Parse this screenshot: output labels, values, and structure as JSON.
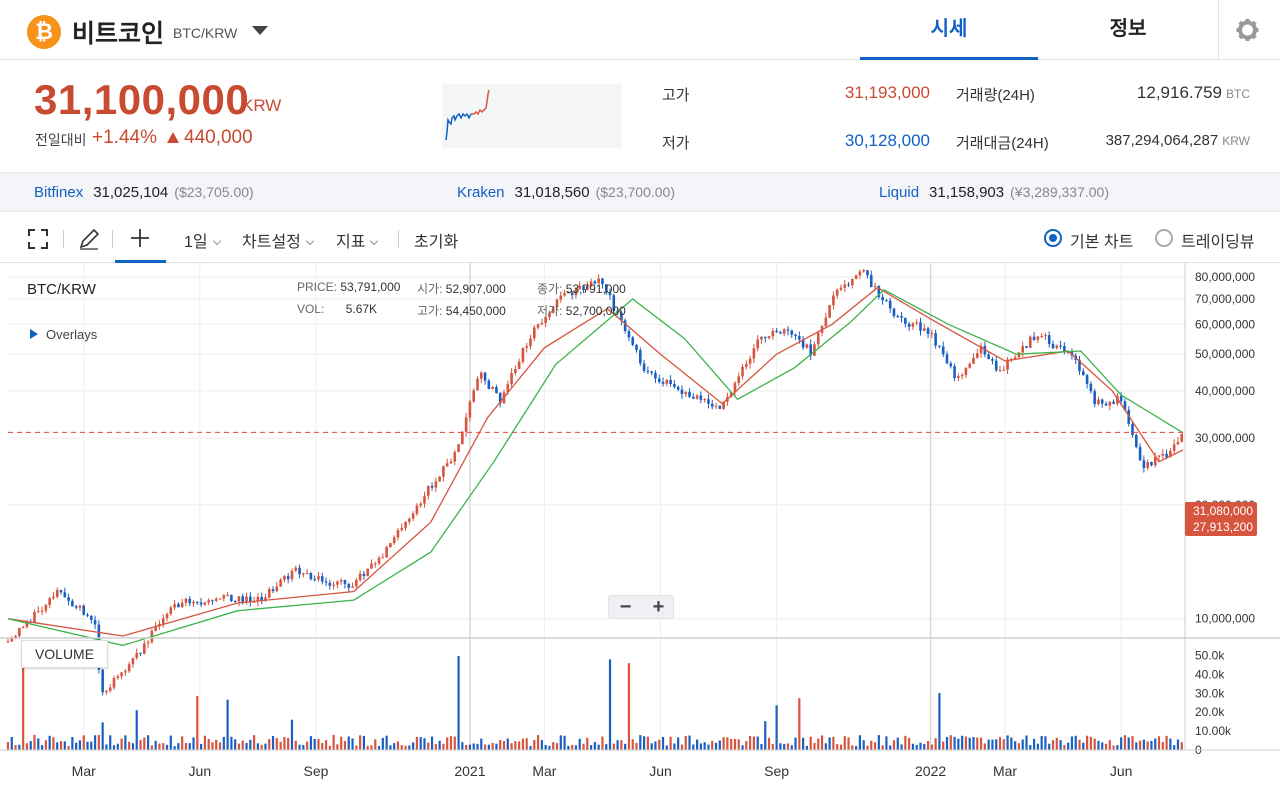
{
  "header": {
    "coin_logo_glyph": "₿",
    "coin_name": "비트코인",
    "pair": "BTC/KRW",
    "tabs": [
      {
        "label": "시세",
        "active": true
      },
      {
        "label": "정보",
        "active": false
      }
    ],
    "settings_icon": "gear-icon"
  },
  "summary": {
    "price": "31,100,000",
    "unit": "KRW",
    "change_label": "전일대비",
    "change_pct": "+1.44%",
    "change_abs": "440,000",
    "high_label": "고가",
    "high": "31,193,000",
    "low_label": "저가",
    "low": "30,128,000",
    "volume_label": "거래량(24H)",
    "volume": "12,916.759",
    "volume_unit": "BTC",
    "turnover_label": "거래대금(24H)",
    "turnover": "387,294,064,287",
    "turnover_unit": "KRW"
  },
  "exchanges": [
    {
      "name": "Bitfinex",
      "price": "31,025,104",
      "usd": "($23,705.00)"
    },
    {
      "name": "Kraken",
      "price": "31,018,560",
      "usd": "($23,700.00)"
    },
    {
      "name": "Liquid",
      "price": "31,158,903",
      "usd": "(¥3,289,337.00)"
    }
  ],
  "toolbar": {
    "interval": "1일",
    "chart_settings": "차트설정",
    "indicators": "지표",
    "reset": "초기화",
    "basic_chart": "기본 차트",
    "tradingview": "트레이딩뷰"
  },
  "chart": {
    "symbol": "BTC/KRW",
    "overlays": "Overlays",
    "ohlc": {
      "price_label": "PRICE:",
      "price": "53,791,000",
      "vol_label": "VOL:",
      "vol": "5.67K",
      "open_label": "시가:",
      "open": "52,907,000",
      "high_label": "고가:",
      "high": "54,450,000",
      "close_label": "종가:",
      "close": "53,791,000",
      "low_label": "저가:",
      "low": "52,700,000"
    },
    "volume_label": "VOLUME",
    "zoom_out": "−",
    "zoom_in": "+",
    "current_price_tag": "31,080,000",
    "ma_price_tag": "27,913,200"
  },
  "chart_data": {
    "type": "line",
    "title": "",
    "y_tick_labels": [
      "80,000,000",
      "70,000,000",
      "60,000,000",
      "50,000,000",
      "40,000,000",
      "30,000,000",
      "20,000,000",
      "10,000,000"
    ],
    "y_ticks": [
      80000000,
      70000000,
      60000000,
      50000000,
      40000000,
      30000000,
      20000000,
      10000000
    ],
    "volume_tick_labels": [
      "50.0k",
      "40.0k",
      "30.0k",
      "20.0k",
      "10.00k",
      "0"
    ],
    "volume_ticks": [
      50000,
      40000,
      30000,
      20000,
      10000,
      0
    ],
    "x_tick_labels": [
      "Mar",
      "Jun",
      "Sep",
      "2021",
      "Mar",
      "Jun",
      "Sep",
      "2022",
      "Mar",
      "Jun"
    ],
    "x_ticks": [
      "2020-03-01",
      "2020-06-01",
      "2020-09-01",
      "2021-01-01",
      "2021-03-01",
      "2021-06-01",
      "2021-09-01",
      "2022-01-01",
      "2022-03-01",
      "2022-06-01"
    ],
    "y_scale": "log",
    "ylim": [
      9000000,
      84000000
    ],
    "x_range": [
      "2020-01-01",
      "2022-07-20"
    ],
    "series": [
      {
        "x": [
          "2020-01-01",
          "2020-02-10",
          "2020-03-10",
          "2020-03-15",
          "2020-04-15",
          "2020-05-10",
          "2020-06-15",
          "2020-07-20",
          "2020-08-15",
          "2020-09-10",
          "2020-10-01",
          "2020-10-25",
          "2020-11-25",
          "2020-12-20",
          "2021-01-08",
          "2021-01-25",
          "2021-02-20",
          "2021-03-13",
          "2021-04-14",
          "2021-05-20",
          "2021-06-22",
          "2021-07-20",
          "2021-08-20",
          "2021-09-10",
          "2021-09-28",
          "2021-10-20",
          "2021-11-09",
          "2021-12-05",
          "2021-12-30",
          "2022-01-22",
          "2022-02-10",
          "2022-02-24",
          "2022-03-28",
          "2022-04-25",
          "2022-05-12",
          "2022-06-01",
          "2022-06-18",
          "2022-07-10",
          "2022-07-20"
        ],
        "y": [
          8700000,
          11800000,
          9800000,
          6200000,
          8300000,
          10800000,
          11400000,
          11200000,
          13500000,
          12400000,
          12300000,
          15000000,
          21000000,
          27000000,
          45000000,
          38000000,
          58000000,
          70000000,
          79000000,
          45000000,
          39000000,
          36000000,
          56000000,
          57000000,
          51000000,
          75000000,
          82000000,
          62000000,
          58000000,
          43000000,
          52000000,
          45000000,
          57000000,
          48000000,
          37000000,
          38000000,
          25000000,
          27500000,
          31080000
        ]
      },
      {
        "x": [
          "2020-01-01",
          "2020-04-01",
          "2020-07-01",
          "2020-10-01",
          "2020-12-01",
          "2021-01-15",
          "2021-03-01",
          "2021-04-20",
          "2021-06-01",
          "2021-07-20",
          "2021-09-01",
          "2021-10-15",
          "2021-11-20",
          "2022-01-01",
          "2022-03-01",
          "2022-04-20",
          "2022-05-25",
          "2022-07-01",
          "2022-07-20"
        ],
        "y": [
          10000000,
          9000000,
          11000000,
          11800000,
          18000000,
          34000000,
          52000000,
          66000000,
          50000000,
          37000000,
          50000000,
          60000000,
          75000000,
          62000000,
          48000000,
          51000000,
          40000000,
          26000000,
          27913200
        ]
      },
      {
        "x": [
          "2020-01-01",
          "2020-04-01",
          "2020-07-01",
          "2020-10-01",
          "2020-12-01",
          "2021-01-20",
          "2021-03-10",
          "2021-05-10",
          "2021-06-20",
          "2021-08-01",
          "2021-09-15",
          "2021-10-30",
          "2021-11-25",
          "2022-01-15",
          "2022-03-10",
          "2022-04-30",
          "2022-06-01",
          "2022-07-20"
        ],
        "y": [
          10000000,
          8500000,
          10500000,
          11200000,
          15000000,
          26000000,
          47000000,
          70000000,
          55000000,
          38000000,
          46000000,
          61000000,
          74000000,
          60000000,
          50000000,
          51000000,
          39000000,
          31000000
        ]
      }
    ],
    "reference_line": 31080000,
    "grid": true,
    "legend": "none"
  }
}
